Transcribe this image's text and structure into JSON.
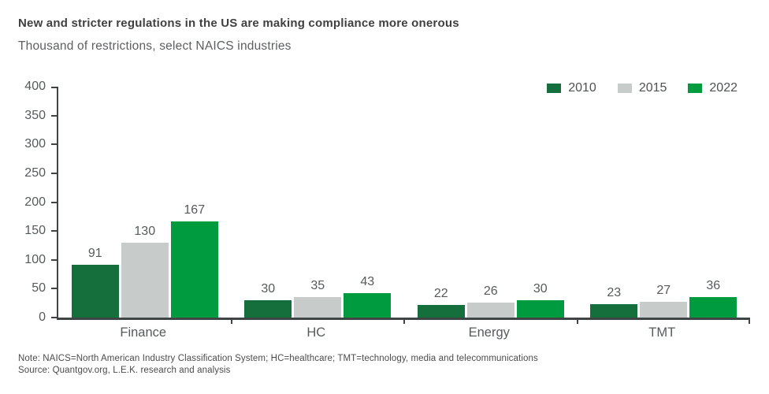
{
  "header": {
    "title": "New and stricter regulations in the US are making compliance more onerous",
    "subtitle": "Thousand of restrictions, select NAICS industries"
  },
  "chart_data": {
    "type": "bar",
    "categories": [
      "Finance",
      "HC",
      "Energy",
      "TMT"
    ],
    "series": [
      {
        "name": "2010",
        "color": "#156f3d",
        "values": [
          91,
          30,
          22,
          23
        ]
      },
      {
        "name": "2015",
        "color": "#c7cccb",
        "values": [
          130,
          35,
          26,
          27
        ]
      },
      {
        "name": "2022",
        "color": "#009b3e",
        "values": [
          167,
          43,
          30,
          36
        ]
      }
    ],
    "title": "New and stricter regulations in the US are making compliance more onerous",
    "subtitle": "Thousand of restrictions, select NAICS industries",
    "xlabel": "",
    "ylabel": "",
    "ylim": [
      0,
      400
    ],
    "yticks": [
      0,
      50,
      100,
      150,
      200,
      250,
      300,
      350,
      400
    ],
    "grid": false,
    "legend_position": "top-right",
    "bar_value_labels": true
  },
  "colors": {
    "axis": "#3f4444",
    "tick_label": "#555a5a",
    "value_label": "#555a5a",
    "title": "#404040",
    "subtitle": "#5c6060"
  },
  "footer": {
    "note": "Note: NAICS=North American Industry Classification System; HC=healthcare; TMT=technology, media and telecommunications",
    "source": "Source: Quantgov.org, L.E.K. research and analysis"
  }
}
